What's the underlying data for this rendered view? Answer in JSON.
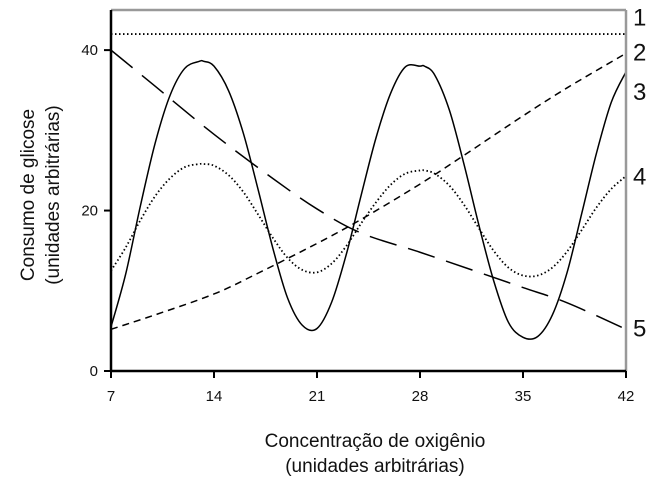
{
  "chart_data": {
    "type": "line",
    "title": "",
    "xlabel": [
      "Concentração de oxigênio",
      "(unidades arbitrárias)"
    ],
    "ylabel": [
      "Consumo de glicose",
      "(unidades arbitrárias)"
    ],
    "xlim": [
      7,
      42
    ],
    "ylim": [
      0,
      45
    ],
    "xticks": [
      7,
      14,
      21,
      28,
      35,
      42
    ],
    "yticks": [
      0,
      20,
      40
    ],
    "grid": false,
    "legend": "none",
    "series": [
      {
        "label": "1",
        "style": "dotted",
        "x": [
          7,
          42
        ],
        "y": [
          42,
          42
        ]
      },
      {
        "label": "2",
        "style": "long-dash",
        "x": [
          7,
          10,
          14,
          18,
          21,
          24,
          28,
          32,
          35,
          38,
          42
        ],
        "y": [
          40,
          35.5,
          29.5,
          24,
          20.2,
          17.2,
          14.8,
          12.3,
          10.4,
          8.5,
          5.2
        ]
      },
      {
        "label": "3",
        "style": "solid",
        "x": [
          7,
          8,
          9,
          10,
          11,
          12,
          13,
          13.3,
          14,
          15,
          16,
          17,
          18,
          19,
          20,
          21,
          22,
          23,
          24,
          25,
          26,
          27,
          28,
          28.3,
          29,
          30,
          31,
          32,
          33,
          34,
          35,
          36,
          37,
          38,
          39,
          40,
          41,
          42
        ],
        "y": [
          5.5,
          12.1,
          20.6,
          28.4,
          34.3,
          37.7,
          38.6,
          38.6,
          38.0,
          34.9,
          29.6,
          22.6,
          15.3,
          9.1,
          5.7,
          5.3,
          8.6,
          14.6,
          21.9,
          29.0,
          34.6,
          37.9,
          38.0,
          38.0,
          36.9,
          32.5,
          25.7,
          18.2,
          11.3,
          6.1,
          4.2,
          4.3,
          7.0,
          12.3,
          19.7,
          27.2,
          33.5,
          37.3
        ]
      },
      {
        "label": "4",
        "style": "dotted",
        "x": [
          7,
          8,
          9,
          10,
          11,
          12,
          13,
          13.3,
          14,
          15,
          16,
          17,
          18,
          19,
          20,
          21,
          22,
          23,
          24,
          25,
          26,
          27,
          28,
          28.3,
          29,
          30,
          31,
          32,
          33,
          34,
          35,
          36,
          37,
          38,
          39,
          40,
          41,
          42
        ],
        "y": [
          12.5,
          15.4,
          18.8,
          21.8,
          24.0,
          25.4,
          25.8,
          25.8,
          25.6,
          24.4,
          22.3,
          19.5,
          16.6,
          14.1,
          12.6,
          12.3,
          13.4,
          15.6,
          18.4,
          21.0,
          23.2,
          24.6,
          25.0,
          25.0,
          24.6,
          23.1,
          20.7,
          17.8,
          15.0,
          12.9,
          11.9,
          11.9,
          12.9,
          14.9,
          17.6,
          20.4,
          22.7,
          24.3
        ]
      },
      {
        "label": "5",
        "style": "short-dash",
        "x": [
          7,
          10,
          14,
          17,
          21,
          24,
          28,
          31,
          35,
          38,
          42
        ],
        "y": [
          5.2,
          7.0,
          9.6,
          12.2,
          15.9,
          18.9,
          23.3,
          26.9,
          31.8,
          35.3,
          39.6
        ]
      }
    ],
    "curve_labels": [
      {
        "text": "1",
        "y_value": 44.2
      },
      {
        "text": "2",
        "y_value": 39.8
      },
      {
        "text": "3",
        "y_value": 34.9
      },
      {
        "text": "4",
        "y_value": 24.4
      },
      {
        "text": "5",
        "y_value": 5.4
      }
    ]
  }
}
